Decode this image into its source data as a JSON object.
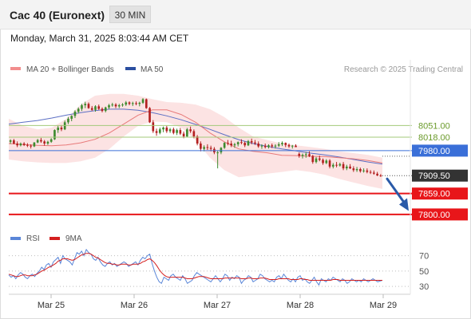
{
  "header": {
    "title": "Cac 40 (Euronext)",
    "interval": "30 MIN"
  },
  "timestamp": "Monday, March 31, 2025 8:03:44 AM CET",
  "legend": {
    "bollinger": "MA 20 + Bollinger Bands",
    "ma50": "MA 50",
    "copyright": "Research © 2025 Trading Central"
  },
  "rsi_legend": {
    "rsi": "RSI",
    "ma": "9MA"
  },
  "colors": {
    "up": "#3d8a2e",
    "down": "#b32020",
    "ma20": "#e87a7a",
    "band": "#fbd9d9",
    "ma50": "#5c6fc4",
    "resistance": "#a3c97a",
    "pivot": "#3a6fd8",
    "support": "#e8161a",
    "arrow": "#2a5aa8",
    "rsi": "#5a86d8",
    "rsi_ma": "#d42020",
    "current": "#333333"
  },
  "chart_data": [
    {
      "type": "candlestick",
      "x_ticks": [
        "Mar 25",
        "Mar 26",
        "Mar 27",
        "Mar 28",
        "Mar 29"
      ],
      "ylim": [
        7775,
        8180
      ],
      "series": [
        {
          "name": "MA 20 + Bollinger Bands",
          "ma": [
            8000,
            7997,
            7995,
            7994,
            7996,
            8002,
            8012,
            8030,
            8055,
            8080,
            8095,
            8095,
            8082,
            8060,
            8030,
            8005,
            7985,
            7978,
            7974,
            7967,
            7966,
            7964,
            7963,
            7960,
            7957,
            7952,
            7945
          ],
          "upper": [
            8070,
            8050,
            8040,
            8045,
            8070,
            8110,
            8135,
            8140,
            8140,
            8135,
            8125,
            8117,
            8115,
            8110,
            8097,
            8075,
            8045,
            8020,
            8010,
            8000,
            7995,
            7990,
            7985,
            7978,
            7973,
            7968,
            7960
          ],
          "lower": [
            7955,
            7950,
            7947,
            7945,
            7945,
            7950,
            7960,
            7985,
            8020,
            8050,
            8062,
            8060,
            8045,
            8010,
            7960,
            7925,
            7905,
            7910,
            7915,
            7920,
            7925,
            7920,
            7912,
            7900,
            7890,
            7880,
            7872
          ]
        },
        {
          "name": "MA 50",
          "values": [
            8055,
            8060,
            8065,
            8072,
            8080,
            8087,
            8093,
            8097,
            8097,
            8094,
            8087,
            8078,
            8067,
            8054,
            8040,
            8025,
            8011,
            8000,
            7992,
            7985,
            7979,
            7973,
            7968,
            7962,
            7955,
            7948,
            7942
          ]
        }
      ],
      "candles": [
        [
          8005,
          8012,
          7999,
          8009
        ],
        [
          8009,
          8013,
          7998,
          8000
        ],
        [
          8000,
          8006,
          7990,
          7995
        ],
        [
          7995,
          8003,
          7992,
          8000
        ],
        [
          8000,
          8004,
          7993,
          7996
        ],
        [
          7996,
          8001,
          7990,
          7994
        ],
        [
          7994,
          7998,
          7986,
          7992
        ],
        [
          7992,
          8004,
          7990,
          8003
        ],
        [
          8003,
          8013,
          8001,
          8010
        ],
        [
          8010,
          8016,
          8002,
          8006
        ],
        [
          8006,
          8010,
          7994,
          8000
        ],
        [
          8000,
          8008,
          7996,
          8005
        ],
        [
          8005,
          8015,
          8002,
          8012
        ],
        [
          8012,
          8040,
          8010,
          8038
        ],
        [
          8038,
          8050,
          8030,
          8045
        ],
        [
          8045,
          8052,
          8035,
          8040
        ],
        [
          8040,
          8065,
          8038,
          8060
        ],
        [
          8060,
          8075,
          8055,
          8070
        ],
        [
          8070,
          8080,
          8063,
          8078
        ],
        [
          8078,
          8094,
          8072,
          8090
        ],
        [
          8090,
          8102,
          8085,
          8098
        ],
        [
          8098,
          8112,
          8092,
          8108
        ],
        [
          8108,
          8118,
          8100,
          8112
        ],
        [
          8112,
          8116,
          8098,
          8100
        ],
        [
          8100,
          8106,
          8092,
          8095
        ],
        [
          8095,
          8108,
          8090,
          8105
        ],
        [
          8105,
          8110,
          8095,
          8098
        ],
        [
          8098,
          8102,
          8088,
          8092
        ],
        [
          8092,
          8104,
          8088,
          8102
        ],
        [
          8102,
          8112,
          8097,
          8108
        ],
        [
          8108,
          8115,
          8104,
          8110
        ],
        [
          8110,
          8114,
          8100,
          8105
        ],
        [
          8105,
          8112,
          8100,
          8108
        ],
        [
          8108,
          8114,
          8104,
          8110
        ],
        [
          8110,
          8120,
          8106,
          8116
        ],
        [
          8116,
          8119,
          8108,
          8112
        ],
        [
          8112,
          8118,
          8106,
          8114
        ],
        [
          8114,
          8119,
          8108,
          8112
        ],
        [
          8112,
          8118,
          8105,
          8115
        ],
        [
          8115,
          8128,
          8112,
          8125
        ],
        [
          8125,
          8127,
          8098,
          8100
        ],
        [
          8100,
          8103,
          8058,
          8060
        ],
        [
          8060,
          8066,
          8030,
          8035
        ],
        [
          8035,
          8042,
          8022,
          8030
        ],
        [
          8030,
          8045,
          8026,
          8040
        ],
        [
          8040,
          8048,
          8032,
          8045
        ],
        [
          8045,
          8050,
          8030,
          8035
        ],
        [
          8035,
          8044,
          8030,
          8040
        ],
        [
          8040,
          8045,
          8026,
          8030
        ],
        [
          8030,
          8042,
          8024,
          8038
        ],
        [
          8038,
          8044,
          8024,
          8028
        ],
        [
          8028,
          8034,
          8015,
          8020
        ],
        [
          8020,
          8044,
          8018,
          8040
        ],
        [
          8040,
          8048,
          8030,
          8035
        ],
        [
          8035,
          8040,
          8015,
          8020
        ],
        [
          8020,
          8024,
          7995,
          8000
        ],
        [
          8000,
          8006,
          7978,
          7985
        ],
        [
          7985,
          7995,
          7978,
          7990
        ],
        [
          7990,
          7998,
          7982,
          7988
        ],
        [
          7988,
          7994,
          7978,
          7985
        ],
        [
          7985,
          7990,
          7970,
          7975
        ],
        [
          7975,
          7980,
          7930,
          7975
        ],
        [
          7975,
          7990,
          7970,
          7988
        ],
        [
          7988,
          8004,
          7985,
          8002
        ],
        [
          8002,
          8010,
          7995,
          8000
        ],
        [
          8000,
          8008,
          7990,
          7995
        ],
        [
          7995,
          8002,
          7988,
          7998
        ],
        [
          7998,
          8006,
          7992,
          8004
        ],
        [
          8004,
          8012,
          7998,
          8002
        ],
        [
          8002,
          8006,
          7990,
          7995
        ],
        [
          7995,
          8010,
          7993,
          8007
        ],
        [
          8007,
          8014,
          7998,
          8003
        ],
        [
          8003,
          8010,
          7996,
          8000
        ],
        [
          8000,
          8006,
          7988,
          7992
        ],
        [
          7992,
          7998,
          7985,
          7994
        ],
        [
          7994,
          8000,
          7986,
          7990
        ],
        [
          7990,
          7998,
          7986,
          7995
        ],
        [
          7995,
          8000,
          7987,
          7992
        ],
        [
          7992,
          7998,
          7986,
          7994
        ],
        [
          7994,
          8004,
          7990,
          7998
        ],
        [
          7998,
          8006,
          7993,
          8002
        ],
        [
          8002,
          8003,
          7990,
          7996
        ],
        [
          7996,
          8000,
          7988,
          7992
        ],
        [
          7992,
          7996,
          7986,
          7994
        ],
        [
          7994,
          7998,
          7990,
          7990
        ],
        [
          7971,
          7975,
          7960,
          7965
        ],
        [
          7965,
          7972,
          7958,
          7968
        ],
        [
          7968,
          7976,
          7960,
          7970
        ],
        [
          7970,
          7978,
          7962,
          7965
        ],
        [
          7965,
          7968,
          7943,
          7948
        ],
        [
          7948,
          7962,
          7944,
          7958
        ],
        [
          7958,
          7966,
          7950,
          7954
        ],
        [
          7954,
          7958,
          7940,
          7945
        ],
        [
          7945,
          7956,
          7942,
          7952
        ],
        [
          7952,
          7956,
          7930,
          7935
        ],
        [
          7935,
          7945,
          7930,
          7940
        ],
        [
          7940,
          7948,
          7933,
          7938
        ],
        [
          7938,
          7946,
          7935,
          7942
        ],
        [
          7942,
          7948,
          7925,
          7930
        ],
        [
          7930,
          7940,
          7925,
          7935
        ],
        [
          7935,
          7942,
          7928,
          7930
        ],
        [
          7930,
          7936,
          7920,
          7925
        ],
        [
          7925,
          7934,
          7920,
          7928
        ],
        [
          7928,
          7932,
          7918,
          7922
        ],
        [
          7922,
          7930,
          7918,
          7924
        ],
        [
          7924,
          7930,
          7916,
          7920
        ],
        [
          7920,
          7925,
          7914,
          7918
        ],
        [
          7918,
          7924,
          7912,
          7915
        ],
        [
          7915,
          7920,
          7908,
          7910
        ],
        [
          7910,
          7914,
          7906,
          7909.5
        ]
      ],
      "levels": [
        {
          "value": 8051.0,
          "label": "8051.00",
          "role": "resistance"
        },
        {
          "value": 8018.0,
          "label": "8018.00",
          "role": "resistance"
        },
        {
          "value": 7980.0,
          "label": "7980.00",
          "role": "pivot"
        },
        {
          "value": 7909.5,
          "label": "7909.50",
          "role": "current"
        },
        {
          "value": 7859.0,
          "label": "7859.00",
          "role": "support"
        },
        {
          "value": 7800.0,
          "label": "7800.00",
          "role": "support"
        }
      ],
      "arrow": {
        "from": 7909.5,
        "to": 7810,
        "direction": "down"
      }
    },
    {
      "type": "line",
      "ylim": [
        25,
        80
      ],
      "y_ticks": [
        "70",
        "50",
        "30"
      ],
      "series": [
        {
          "name": "RSI",
          "values": [
            45,
            42,
            44,
            40,
            45,
            48,
            46,
            42,
            40,
            44,
            46,
            43,
            47,
            50,
            55,
            52,
            58,
            60,
            55,
            62,
            65,
            68,
            60,
            70,
            66,
            64,
            62,
            58,
            66,
            74,
            72,
            76,
            70,
            78,
            74,
            72,
            66,
            64,
            68,
            62,
            58,
            56,
            60,
            62,
            58,
            60,
            56,
            58,
            60,
            62,
            60,
            56,
            58,
            60,
            62,
            58,
            64,
            68,
            66,
            70,
            72,
            60,
            50,
            42,
            36,
            34,
            42,
            40,
            38,
            44,
            46,
            42,
            40,
            38,
            44,
            40,
            34,
            36,
            38,
            44,
            48,
            46,
            44,
            42,
            40,
            38,
            36,
            40,
            44,
            40,
            36,
            40,
            46,
            44,
            38,
            42,
            40,
            44,
            42,
            34,
            38,
            40,
            44,
            42,
            36,
            38,
            40,
            46,
            44,
            40,
            38,
            36,
            38,
            36,
            42,
            44,
            40,
            46,
            42,
            38,
            36,
            40,
            36,
            42,
            44,
            38,
            40,
            36,
            34,
            38,
            42,
            36,
            32,
            40,
            38,
            36,
            40,
            38,
            42,
            40,
            38,
            36,
            40,
            38,
            34,
            36,
            40,
            38,
            36,
            38,
            36,
            40,
            38,
            36,
            38,
            40,
            38,
            36,
            37,
            38
          ]
        },
        {
          "name": "9MA",
          "values": [
            46,
            45,
            44,
            43,
            43,
            44,
            45,
            45,
            44,
            44,
            44,
            45,
            46,
            48,
            50,
            51,
            53,
            55,
            56,
            58,
            60,
            63,
            64,
            66,
            66,
            66,
            65,
            64,
            65,
            67,
            69,
            71,
            72,
            73,
            73,
            72,
            70,
            68,
            67,
            65,
            63,
            61,
            60,
            60,
            59,
            59,
            58,
            58,
            59,
            59,
            59,
            58,
            58,
            59,
            59,
            59,
            60,
            62,
            63,
            65,
            66,
            64,
            61,
            57,
            52,
            48,
            45,
            43,
            42,
            42,
            42,
            42,
            42,
            42,
            42,
            41,
            40,
            40,
            40,
            41,
            42,
            43,
            43,
            43,
            42,
            41,
            40,
            40,
            40,
            40,
            40,
            40,
            41,
            41,
            41,
            41,
            41,
            41,
            41,
            40,
            40,
            40,
            41,
            41,
            40,
            40,
            40,
            41,
            41,
            41,
            40,
            39,
            39,
            39,
            39,
            40,
            40,
            40,
            40,
            40,
            39,
            39,
            39,
            39,
            40,
            40,
            39,
            39,
            38,
            38,
            38,
            38,
            38,
            38,
            38,
            38,
            38,
            38,
            39,
            39,
            39,
            38,
            38,
            38,
            38,
            38,
            38,
            38,
            38,
            38,
            38,
            38,
            38,
            38,
            38,
            38,
            38,
            38,
            38,
            38
          ]
        }
      ]
    }
  ]
}
